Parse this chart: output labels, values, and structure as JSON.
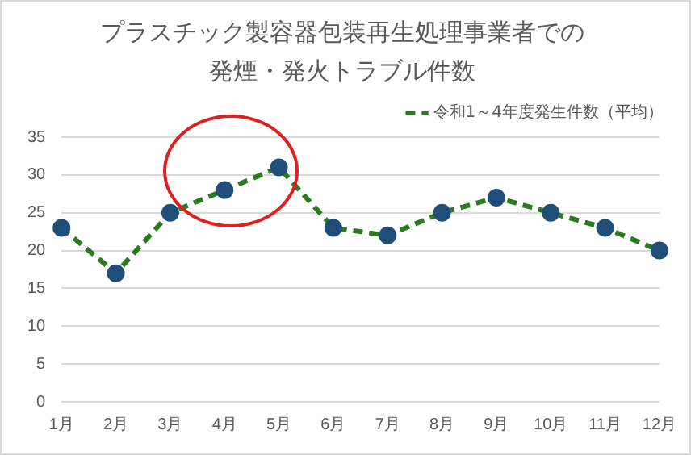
{
  "chart_data": {
    "type": "line",
    "title": "プラスチック製容器包装再生処理事業者での発煙・発火トラブル件数",
    "categories": [
      "1月",
      "2月",
      "3月",
      "4月",
      "5月",
      "6月",
      "7月",
      "8月",
      "9月",
      "10月",
      "11月",
      "12月"
    ],
    "series": [
      {
        "name": "令和1～4年度発生件数（平均）",
        "color": "#2a7a1e",
        "colors": [
          "#1f4e79",
          "#1f4e79",
          "#1f4e79",
          "#1f4e79",
          "#1f4e79",
          "#1f4e79",
          "#1f4e79",
          "#1f4e79",
          "#1f4e79",
          "#1f4e79",
          "#1f4e79",
          "#1f4e79"
        ],
        "values": [
          23,
          17,
          25,
          28,
          31,
          23,
          22,
          25,
          27,
          25,
          23,
          20
        ]
      }
    ],
    "ylim": [
      0,
      35
    ],
    "yticks": [
      0,
      5,
      10,
      15,
      20,
      25,
      30,
      35
    ],
    "grid": "y",
    "legend": "top right",
    "marker": "circle",
    "line_style": "dashed"
  }
}
